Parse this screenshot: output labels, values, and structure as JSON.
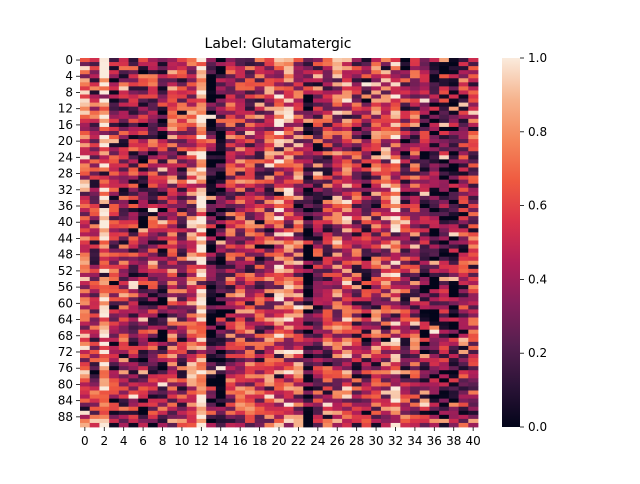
{
  "chart_data": {
    "type": "heatmap",
    "title": "Label: Glutamatergic",
    "xlabel": "",
    "ylabel": "",
    "n_rows": 91,
    "n_cols": 41,
    "x_tick_labels": [
      "0",
      "2",
      "4",
      "6",
      "8",
      "10",
      "12",
      "14",
      "16",
      "18",
      "20",
      "22",
      "24",
      "26",
      "28",
      "30",
      "32",
      "34",
      "36",
      "38",
      "40"
    ],
    "y_tick_labels": [
      "0",
      "4",
      "8",
      "12",
      "16",
      "20",
      "24",
      "28",
      "32",
      "36",
      "40",
      "44",
      "48",
      "52",
      "56",
      "60",
      "64",
      "68",
      "72",
      "76",
      "80",
      "84",
      "88"
    ],
    "colorbar": {
      "min": 0.0,
      "max": 1.0,
      "tick_labels": [
        "0.0",
        "0.2",
        "0.4",
        "0.6",
        "0.8",
        "1.0"
      ],
      "colormap": "rocket",
      "colors": [
        "#03051a",
        "#2b1337",
        "#551f4f",
        "#831f5b",
        "#b11f58",
        "#d9324a",
        "#ef5a40",
        "#f4885c",
        "#f6b48e",
        "#faebdd"
      ]
    },
    "column_means": [
      0.62,
      0.45,
      0.88,
      0.35,
      0.42,
      0.38,
      0.3,
      0.4,
      0.28,
      0.55,
      0.4,
      0.6,
      0.92,
      0.08,
      0.1,
      0.45,
      0.5,
      0.48,
      0.4,
      0.52,
      0.7,
      0.66,
      0.55,
      0.12,
      0.38,
      0.42,
      0.58,
      0.62,
      0.4,
      0.3,
      0.52,
      0.58,
      0.7,
      0.35,
      0.45,
      0.25,
      0.2,
      0.28,
      0.22,
      0.35,
      0.42
    ],
    "seed": 20240611
  }
}
